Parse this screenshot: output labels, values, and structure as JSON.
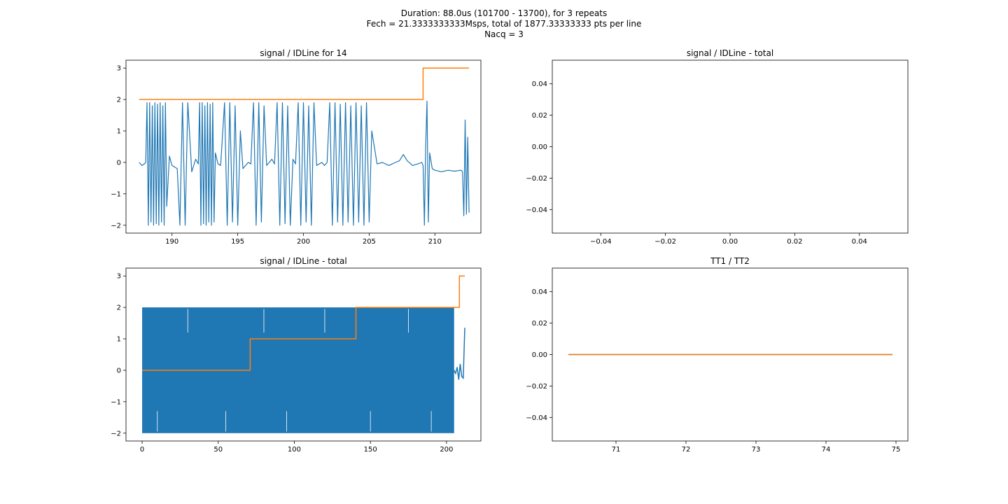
{
  "figure": {
    "suptitle_lines": [
      "Duration: 88.0us (101700 - 13700), for 3 repeats",
      "Fech = 21.3333333333Msps, total of 1877.33333333 pts per line",
      "Nacq = 3"
    ]
  },
  "colors": {
    "blue": "#1f77b4",
    "orange": "#ff7f0e",
    "axis": "#000000",
    "background": "#ffffff"
  },
  "chart_data": [
    {
      "id": "ax1",
      "type": "line",
      "title": "signal / IDLine for 14",
      "xlabel": "",
      "ylabel": "",
      "xlim": [
        186.5,
        213.5
      ],
      "ylim": [
        -2.25,
        3.25
      ],
      "xticks": [
        190,
        195,
        200,
        205,
        210
      ],
      "yticks": [
        -2,
        -1,
        0,
        1,
        2,
        3
      ],
      "grid": false,
      "series": [
        {
          "name": "signal",
          "color": "#1f77b4",
          "kind": "line",
          "x": [
            187.5,
            187.7,
            187.9,
            188.0,
            188.1,
            188.2,
            188.3,
            188.4,
            188.5,
            188.6,
            188.7,
            188.8,
            188.9,
            189.0,
            189.1,
            189.2,
            189.3,
            189.4,
            189.5,
            189.6,
            189.8,
            190.0,
            190.4,
            190.6,
            190.8,
            191.0,
            191.2,
            191.5,
            191.8,
            192.0,
            192.1,
            192.2,
            192.3,
            192.4,
            192.5,
            192.6,
            192.7,
            192.8,
            192.9,
            193.0,
            193.1,
            193.2,
            193.3,
            193.5,
            193.7,
            194.0,
            194.2,
            194.4,
            194.6,
            194.8,
            195.0,
            195.2,
            195.4,
            195.6,
            195.8,
            196.0,
            196.2,
            196.4,
            196.6,
            196.8,
            197.0,
            197.2,
            197.6,
            197.8,
            198.0,
            198.2,
            198.4,
            198.6,
            198.8,
            199.0,
            199.2,
            199.4,
            199.6,
            199.8,
            200.0,
            200.2,
            200.4,
            200.6,
            200.8,
            201.0,
            201.2,
            201.4,
            201.6,
            201.8,
            202.0,
            202.2,
            202.4,
            202.6,
            202.8,
            203.0,
            203.2,
            203.4,
            203.6,
            203.8,
            204.0,
            204.2,
            204.4,
            204.6,
            204.8,
            205.0,
            205.2,
            205.6,
            206.0,
            206.5,
            207.0,
            207.3,
            207.6,
            207.9,
            208.3,
            208.7,
            209.0,
            209.1,
            209.2,
            209.3,
            209.4,
            209.5,
            209.6,
            209.8,
            210.0,
            210.5,
            211.0,
            211.5,
            212.0,
            212.1,
            212.2,
            212.3,
            212.4,
            212.5,
            212.6
          ],
          "y": [
            0.0,
            -0.1,
            -0.05,
            0.0,
            1.9,
            -2.0,
            1.9,
            -1.9,
            1.8,
            -2.0,
            1.9,
            -1.95,
            1.85,
            -2.0,
            1.9,
            -1.9,
            1.8,
            -2.0,
            1.9,
            -1.4,
            0.2,
            -0.1,
            -0.2,
            -2.0,
            1.9,
            -2.0,
            1.9,
            -0.3,
            0.1,
            -0.05,
            1.9,
            -2.0,
            1.9,
            -1.95,
            1.8,
            -2.0,
            1.9,
            -1.9,
            1.85,
            -2.0,
            1.9,
            -1.9,
            0.3,
            -0.05,
            -0.1,
            1.9,
            -2.0,
            1.9,
            -1.9,
            1.8,
            -2.0,
            1.0,
            -0.2,
            -0.1,
            0.0,
            -0.05,
            1.9,
            -2.0,
            1.9,
            -1.9,
            1.8,
            -0.1,
            0.1,
            -0.05,
            1.9,
            -2.0,
            1.9,
            -1.95,
            1.8,
            -2.0,
            0.1,
            -0.05,
            1.9,
            -2.0,
            1.9,
            -1.9,
            1.8,
            -2.0,
            1.9,
            -0.1,
            -0.05,
            0.0,
            -0.1,
            0.0,
            1.9,
            -2.0,
            1.9,
            -1.9,
            1.85,
            -2.0,
            1.9,
            -1.9,
            1.8,
            -2.0,
            1.9,
            -1.9,
            1.8,
            -2.0,
            1.9,
            -1.9,
            1.0,
            -0.05,
            0.0,
            -0.1,
            0.0,
            0.05,
            0.25,
            0.05,
            -0.1,
            -0.05,
            0.0,
            -0.1,
            -2.0,
            0.5,
            1.95,
            -1.9,
            0.3,
            -0.2,
            -0.25,
            -0.3,
            -0.25,
            -0.28,
            -0.25,
            -0.3,
            -1.7,
            1.35,
            -1.65,
            0.8,
            -1.6
          ],
          "draw_linewidth": 1.2
        },
        {
          "name": "IDLine",
          "color": "#ff7f0e",
          "kind": "step",
          "x": [
            187.5,
            209.1,
            209.1,
            212.6
          ],
          "y": [
            2,
            2,
            3,
            3
          ]
        }
      ]
    },
    {
      "id": "ax2",
      "type": "line",
      "title": "signal / IDLine - total",
      "xlabel": "",
      "ylabel": "",
      "xlim": [
        -0.055,
        0.055
      ],
      "ylim": [
        -0.055,
        0.055
      ],
      "xticks": [
        -0.04,
        -0.02,
        0.0,
        0.02,
        0.04
      ],
      "yticks": [
        -0.04,
        -0.02,
        0.0,
        0.02,
        0.04
      ],
      "grid": false,
      "series": []
    },
    {
      "id": "ax3",
      "type": "line",
      "title": "signal / IDLine - total",
      "xlabel": "",
      "ylabel": "",
      "xlim": [
        -10.6,
        222.6
      ],
      "ylim": [
        -2.25,
        3.25
      ],
      "xticks": [
        0,
        50,
        100,
        150,
        200
      ],
      "yticks": [
        -2,
        -1,
        0,
        1,
        2,
        3
      ],
      "grid": false,
      "series": [
        {
          "name": "signal",
          "color": "#1f77b4",
          "kind": "band",
          "x": [
            0,
            205
          ],
          "low": -2.0,
          "high": 2.0,
          "tail_x": [
            205,
            206,
            207,
            208,
            209,
            210,
            211,
            212
          ],
          "tail_y": [
            0.0,
            -0.1,
            0.1,
            -0.3,
            0.2,
            -0.2,
            -0.25,
            1.35
          ]
        },
        {
          "name": "IDLine",
          "color": "#ff7f0e",
          "kind": "step",
          "x": [
            0,
            71,
            71,
            140.5,
            140.5,
            208.5,
            208.5,
            212
          ],
          "y": [
            0,
            0,
            1,
            1,
            2,
            2,
            3,
            3
          ]
        }
      ]
    },
    {
      "id": "ax4",
      "type": "line",
      "title": "TT1 / TT2",
      "xlabel": "",
      "ylabel": "",
      "xlim": [
        70.09,
        75.17
      ],
      "ylim": [
        -0.055,
        0.055
      ],
      "xticks": [
        71,
        72,
        73,
        74,
        75
      ],
      "yticks": [
        -0.04,
        -0.02,
        0.0,
        0.02,
        0.04
      ],
      "grid": false,
      "series": [
        {
          "name": "TT1",
          "color": "#1f77b4",
          "kind": "line",
          "x": [
            70.32,
            74.95
          ],
          "y": [
            0,
            0
          ]
        },
        {
          "name": "TT2",
          "color": "#ff7f0e",
          "kind": "line",
          "x": [
            70.32,
            74.95
          ],
          "y": [
            0,
            0
          ]
        }
      ]
    }
  ]
}
